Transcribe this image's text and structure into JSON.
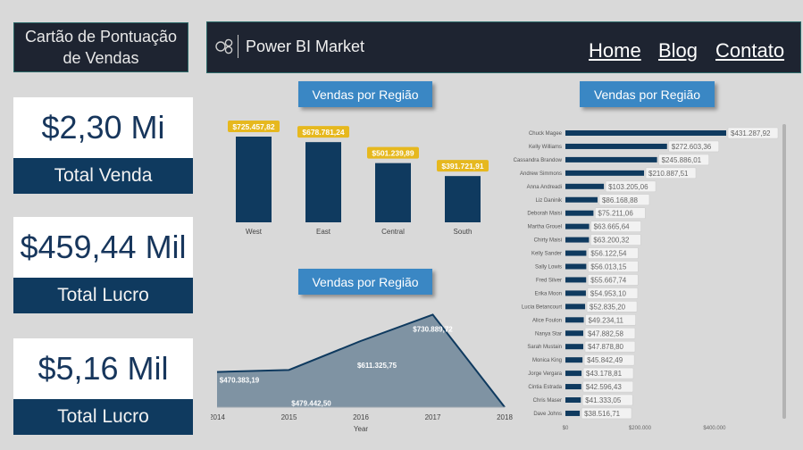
{
  "title_card": {
    "text": "Cartão de Pontuação de Vendas"
  },
  "header": {
    "brand": "Power BI Market",
    "nav": [
      "Home",
      "Blog",
      "Contato"
    ]
  },
  "kpis": [
    {
      "value": "$2,30 Mi",
      "label": "Total Venda"
    },
    {
      "value": "$459,44 Mil",
      "label": "Total Lucro"
    },
    {
      "value": "$5,16 Mil",
      "label": "Total Lucro"
    }
  ],
  "colors": {
    "navy": "#0f3a5f",
    "bar_label": "#e6b81e",
    "pill": "#3a87c4",
    "area": "#7f93a3"
  },
  "chart_data": [
    {
      "type": "bar",
      "title": "Vendas por Região",
      "categories": [
        "West",
        "East",
        "Central",
        "South"
      ],
      "values": [
        725457.82,
        678781.24,
        501239.89,
        391721.91
      ],
      "labels": [
        "$725.457,82",
        "$678.781,24",
        "$501.239,89",
        "$391.721,91"
      ],
      "ylim": [
        0,
        800000
      ]
    },
    {
      "type": "area",
      "title": "Vendas por Região",
      "x": [
        2014,
        2015,
        2016,
        2017,
        2018
      ],
      "values": [
        470383.19,
        479442.5,
        611325.75,
        730889.72,
        0
      ],
      "labels": [
        "$470.383,19",
        "$479.442,50",
        "$611.325,75",
        "$730.889,72",
        ""
      ],
      "xlabel": "Year",
      "ylim": [
        0,
        760000
      ]
    },
    {
      "type": "bar",
      "orientation": "horizontal",
      "title": "Vendas por Região",
      "categories": [
        "Chuck Magee",
        "Kelly Williams",
        "Cassandra Brandow",
        "Andrew Simmons",
        "Anna Andreadi",
        "Liz Daninik",
        "Deborah Maisi",
        "Martha Grouel",
        "Chirty Maisi",
        "Kelly Sander",
        "Sally Lowis",
        "Fred Silver",
        "Erika Moon",
        "Lucia Betancourt",
        "Alice Foulon",
        "Nanya Star",
        "Sarah Mustain",
        "Monica King",
        "Jorge Vergara",
        "Cintia Estrada",
        "Chris Maser",
        "Dave Johns"
      ],
      "values": [
        431287.92,
        272603.36,
        245886.01,
        210887.51,
        103205.06,
        86168.88,
        75211.06,
        63665.64,
        63200.32,
        56122.54,
        56013.15,
        55667.74,
        54953.1,
        52835.2,
        49234.11,
        47882.58,
        47878.8,
        45842.49,
        43178.81,
        42596.43,
        41333.05,
        38516.71
      ],
      "labels": [
        "$431.287,92",
        "$272.603,36",
        "$245.886,01",
        "$210.887,51",
        "$103.205,06",
        "$86.168,88",
        "$75.211,06",
        "$63.665,64",
        "$63.200,32",
        "$56.122,54",
        "$56.013,15",
        "$55.667,74",
        "$54.953,10",
        "$52.835,20",
        "$49.234,11",
        "$47.882,58",
        "$47.878,80",
        "$45.842,49",
        "$43.178,81",
        "$42.596,43",
        "$41.333,05",
        "$38.516,71"
      ],
      "xticks": [
        "$0",
        "$200.000",
        "$400.000"
      ],
      "xlim": [
        0,
        440000
      ]
    }
  ]
}
